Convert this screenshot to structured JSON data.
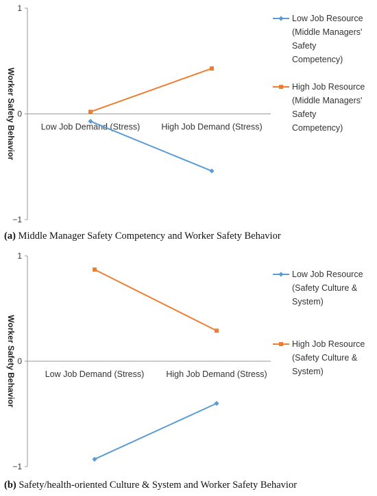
{
  "chart_data": [
    {
      "type": "line",
      "ylabel": "Worker Safety Behavior",
      "ylim": [
        -1,
        1
      ],
      "yticks": [
        "1",
        "0",
        "−1"
      ],
      "categories": [
        "Low Job Demand (Stress)",
        "High Job Demand (Stress)"
      ],
      "series": [
        {
          "name": "Low Job Resource (Middle Managers' Safety Competency)",
          "legend_lines": [
            "Low Job Resource",
            "(Middle Managers'",
            "Safety",
            "Competency)"
          ],
          "values": [
            -0.07,
            -0.54
          ],
          "color": "#5b9bd5",
          "marker": "diamond"
        },
        {
          "name": "High Job Resource (Middle Managers' Safety Competency)",
          "legend_lines": [
            "High Job Resource",
            "(Middle Managers'",
            "Safety",
            "Competency)"
          ],
          "values": [
            0.02,
            0.43
          ],
          "color": "#ed7d31",
          "marker": "square"
        }
      ],
      "caption_label": "(a)",
      "caption_text": " Middle Manager Safety Competency and Worker Safety Behavior"
    },
    {
      "type": "line",
      "ylabel": "Worker Safety Behavior",
      "ylim": [
        -1,
        1
      ],
      "yticks": [
        "1",
        "0",
        "−1"
      ],
      "categories": [
        "Low Job Demand (Stress)",
        "High Job Demand (Stress)"
      ],
      "series": [
        {
          "name": "Low Job Resource (Safety Culture & System)",
          "legend_lines": [
            "Low Job Resource",
            "(Safety Culture &",
            "System)"
          ],
          "values": [
            -0.93,
            -0.4
          ],
          "color": "#5b9bd5",
          "marker": "diamond"
        },
        {
          "name": "High Job Resource (Safety Culture & System)",
          "legend_lines": [
            "High Job Resource",
            "(Safety Culture &",
            "System)"
          ],
          "values": [
            0.87,
            0.29
          ],
          "color": "#ed7d31",
          "marker": "square"
        }
      ],
      "caption_label": "(b)",
      "caption_text": " Safety/health-oriented Culture & System and Worker Safety Behavior"
    }
  ]
}
